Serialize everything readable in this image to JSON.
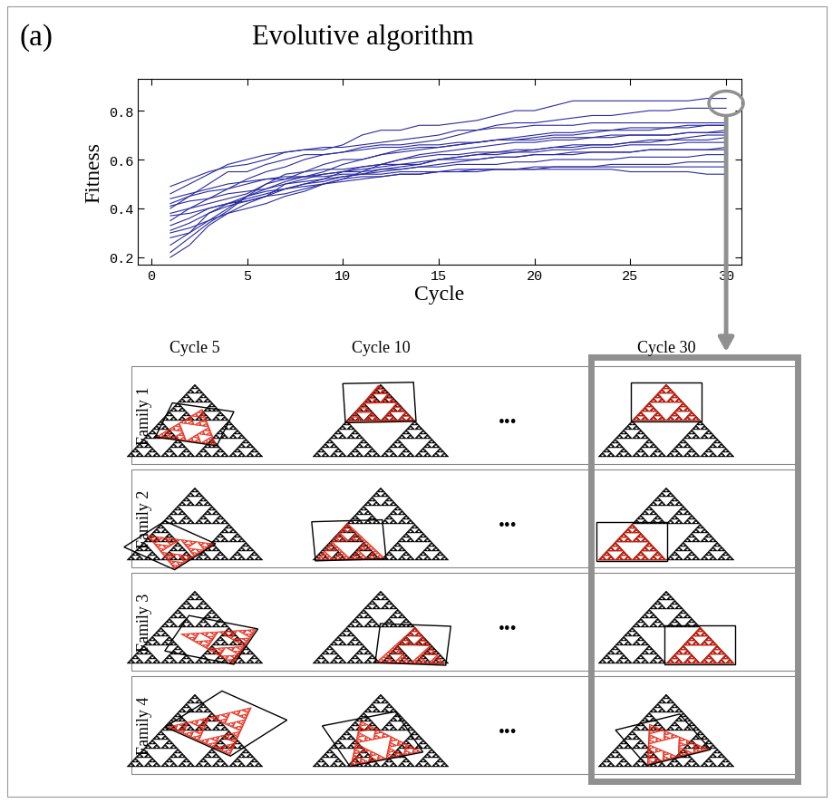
{
  "panel_label": "(a)",
  "heading": "Evolutive algorithm",
  "chart_data": {
    "type": "line",
    "x_label": "Cycle",
    "y_label": "Fitness",
    "color": "#2a2aa0",
    "x": [
      1,
      2,
      3,
      4,
      5,
      6,
      7,
      8,
      9,
      10,
      11,
      12,
      13,
      14,
      15,
      16,
      17,
      18,
      19,
      20,
      21,
      22,
      23,
      24,
      25,
      26,
      27,
      28,
      29,
      30
    ],
    "xlim": [
      -0.7,
      30.8
    ],
    "xticks": [
      0,
      5,
      10,
      15,
      20,
      25,
      30
    ],
    "ylim": [
      0.17,
      0.93
    ],
    "yticks": [
      0.2,
      0.4,
      0.6,
      0.8
    ],
    "series": [
      {
        "values": [
          0.49,
          0.52,
          0.55,
          0.57,
          0.58,
          0.6,
          0.63,
          0.64,
          0.64,
          0.66,
          0.7,
          0.72,
          0.72,
          0.74,
          0.74,
          0.75,
          0.76,
          0.78,
          0.8,
          0.8,
          0.82,
          0.84,
          0.84,
          0.84,
          0.84,
          0.84,
          0.84,
          0.84,
          0.85,
          0.85
        ]
      },
      {
        "values": [
          0.4,
          0.45,
          0.5,
          0.55,
          0.55,
          0.58,
          0.6,
          0.62,
          0.62,
          0.63,
          0.65,
          0.66,
          0.66,
          0.67,
          0.68,
          0.7,
          0.72,
          0.74,
          0.75,
          0.75,
          0.76,
          0.77,
          0.78,
          0.78,
          0.79,
          0.8,
          0.8,
          0.81,
          0.81,
          0.81
        ]
      },
      {
        "values": [
          0.3,
          0.32,
          0.35,
          0.4,
          0.45,
          0.5,
          0.52,
          0.55,
          0.58,
          0.6,
          0.6,
          0.62,
          0.64,
          0.65,
          0.65,
          0.66,
          0.67,
          0.68,
          0.68,
          0.69,
          0.7,
          0.7,
          0.71,
          0.72,
          0.72,
          0.72,
          0.73,
          0.73,
          0.74,
          0.74
        ]
      },
      {
        "values": [
          0.2,
          0.25,
          0.33,
          0.38,
          0.42,
          0.45,
          0.48,
          0.5,
          0.52,
          0.55,
          0.56,
          0.57,
          0.58,
          0.58,
          0.6,
          0.61,
          0.62,
          0.63,
          0.63,
          0.64,
          0.65,
          0.66,
          0.66,
          0.66,
          0.67,
          0.68,
          0.68,
          0.69,
          0.7,
          0.7
        ]
      },
      {
        "values": [
          0.35,
          0.4,
          0.42,
          0.44,
          0.46,
          0.5,
          0.54,
          0.55,
          0.56,
          0.56,
          0.57,
          0.58,
          0.58,
          0.59,
          0.6,
          0.6,
          0.6,
          0.61,
          0.61,
          0.62,
          0.62,
          0.62,
          0.63,
          0.63,
          0.63,
          0.64,
          0.64,
          0.64,
          0.64,
          0.65
        ]
      },
      {
        "values": [
          0.42,
          0.45,
          0.47,
          0.48,
          0.5,
          0.52,
          0.53,
          0.53,
          0.54,
          0.55,
          0.55,
          0.56,
          0.56,
          0.57,
          0.57,
          0.58,
          0.58,
          0.58,
          0.59,
          0.59,
          0.6,
          0.6,
          0.6,
          0.6,
          0.61,
          0.61,
          0.61,
          0.61,
          0.62,
          0.62
        ]
      },
      {
        "values": [
          0.25,
          0.3,
          0.38,
          0.42,
          0.44,
          0.46,
          0.48,
          0.49,
          0.5,
          0.52,
          0.53,
          0.53,
          0.54,
          0.54,
          0.55,
          0.55,
          0.56,
          0.56,
          0.56,
          0.56,
          0.57,
          0.57,
          0.57,
          0.58,
          0.58,
          0.58,
          0.58,
          0.59,
          0.59,
          0.59
        ]
      },
      {
        "values": [
          0.38,
          0.4,
          0.44,
          0.48,
          0.52,
          0.55,
          0.57,
          0.6,
          0.62,
          0.63,
          0.64,
          0.65,
          0.65,
          0.66,
          0.66,
          0.67,
          0.67,
          0.68,
          0.68,
          0.68,
          0.69,
          0.69,
          0.69,
          0.7,
          0.7,
          0.7,
          0.7,
          0.71,
          0.71,
          0.71
        ]
      },
      {
        "values": [
          0.44,
          0.46,
          0.48,
          0.5,
          0.51,
          0.52,
          0.52,
          0.53,
          0.53,
          0.54,
          0.54,
          0.54,
          0.55,
          0.55,
          0.55,
          0.56,
          0.56,
          0.56,
          0.56,
          0.57,
          0.57,
          0.57,
          0.57,
          0.57,
          0.57,
          0.57,
          0.57,
          0.57,
          0.57,
          0.57
        ]
      },
      {
        "values": [
          0.33,
          0.36,
          0.4,
          0.42,
          0.43,
          0.45,
          0.46,
          0.48,
          0.5,
          0.52,
          0.55,
          0.58,
          0.6,
          0.62,
          0.63,
          0.64,
          0.65,
          0.66,
          0.67,
          0.67,
          0.68,
          0.68,
          0.69,
          0.69,
          0.7,
          0.7,
          0.7,
          0.71,
          0.71,
          0.72
        ]
      },
      {
        "values": [
          0.28,
          0.3,
          0.35,
          0.38,
          0.4,
          0.42,
          0.45,
          0.47,
          0.5,
          0.51,
          0.52,
          0.53,
          0.54,
          0.54,
          0.55,
          0.55,
          0.55,
          0.56,
          0.56,
          0.56,
          0.56,
          0.56,
          0.56,
          0.56,
          0.55,
          0.55,
          0.55,
          0.55,
          0.54,
          0.54
        ]
      },
      {
        "values": [
          0.46,
          0.5,
          0.54,
          0.58,
          0.6,
          0.62,
          0.63,
          0.64,
          0.65,
          0.65,
          0.66,
          0.67,
          0.68,
          0.69,
          0.7,
          0.72,
          0.72,
          0.73,
          0.73,
          0.74,
          0.74,
          0.74,
          0.75,
          0.75,
          0.75,
          0.75,
          0.75,
          0.75,
          0.75,
          0.75
        ]
      },
      {
        "values": [
          0.37,
          0.38,
          0.4,
          0.42,
          0.45,
          0.47,
          0.48,
          0.5,
          0.51,
          0.53,
          0.54,
          0.56,
          0.57,
          0.58,
          0.6,
          0.61,
          0.62,
          0.62,
          0.63,
          0.63,
          0.64,
          0.64,
          0.65,
          0.65,
          0.66,
          0.66,
          0.66,
          0.67,
          0.67,
          0.67
        ]
      },
      {
        "values": [
          0.41,
          0.43,
          0.44,
          0.46,
          0.47,
          0.48,
          0.5,
          0.52,
          0.54,
          0.55,
          0.57,
          0.58,
          0.6,
          0.61,
          0.62,
          0.62,
          0.63,
          0.63,
          0.64,
          0.64,
          0.65,
          0.65,
          0.66,
          0.66,
          0.67,
          0.67,
          0.68,
          0.68,
          0.68,
          0.69
        ]
      },
      {
        "values": [
          0.31,
          0.34,
          0.38,
          0.41,
          0.43,
          0.45,
          0.5,
          0.51,
          0.52,
          0.53,
          0.54,
          0.55,
          0.56,
          0.57,
          0.58,
          0.59,
          0.6,
          0.61,
          0.61,
          0.62,
          0.62,
          0.63,
          0.63,
          0.63,
          0.63,
          0.64,
          0.64,
          0.64,
          0.64,
          0.64
        ]
      },
      {
        "values": [
          0.22,
          0.28,
          0.34,
          0.39,
          0.45,
          0.48,
          0.51,
          0.53,
          0.55,
          0.58,
          0.6,
          0.62,
          0.63,
          0.64,
          0.65,
          0.66,
          0.67,
          0.68,
          0.69,
          0.7,
          0.71,
          0.71,
          0.72,
          0.72,
          0.73,
          0.73,
          0.73,
          0.74,
          0.74,
          0.74
        ]
      }
    ]
  },
  "snapshots": {
    "columns": [
      "Cycle 5",
      "Cycle 10",
      "Cycle 30"
    ],
    "rows": [
      "Family 1",
      "Family 2",
      "Family 3",
      "Family 4"
    ],
    "ellipsis": "•••"
  }
}
